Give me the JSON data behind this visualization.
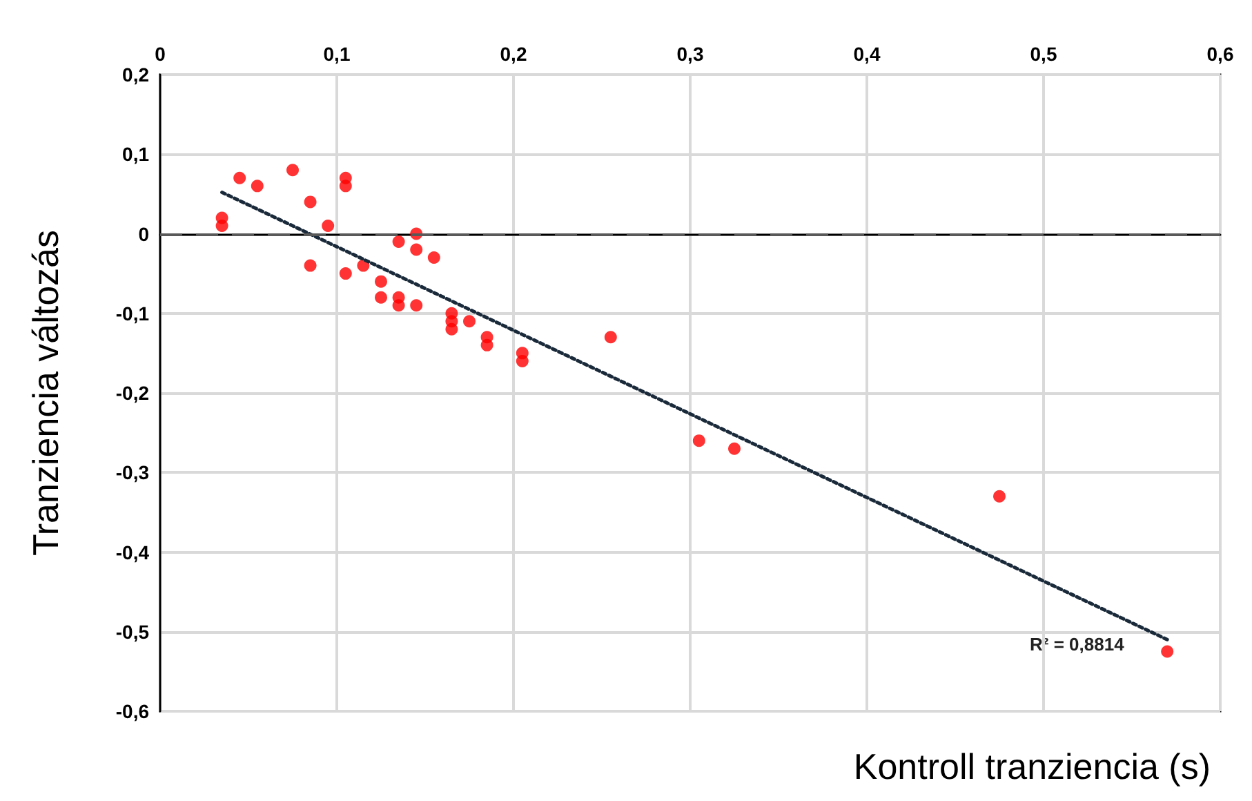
{
  "chart_data": {
    "type": "scatter",
    "xlabel": "Kontroll tranziencia (s)",
    "ylabel": "Tranziencia változás",
    "xlim": [
      0,
      0.6
    ],
    "xticks": [
      0,
      {
        "value": 0.1,
        "label": "0,1"
      },
      {
        "value": 0.2,
        "label": "0,2"
      },
      {
        "value": 0.3,
        "label": "0,3"
      },
      {
        "value": 0.4,
        "label": "0,4"
      },
      {
        "value": 0.5,
        "label": "0,5"
      },
      {
        "value": 0.6,
        "label": "0,6"
      }
    ],
    "ylim": [
      -0.6,
      0.2
    ],
    "yticks": [
      {
        "value": -0.6,
        "label": "-0,6"
      },
      {
        "value": -0.5,
        "label": "-0,5"
      },
      {
        "value": -0.4,
        "label": "-0,4"
      },
      {
        "value": -0.3,
        "label": "-0,3"
      },
      {
        "value": -0.2,
        "label": "-0,2"
      },
      {
        "value": -0.1,
        "label": "-0,1"
      },
      0,
      {
        "value": 0.1,
        "label": "0,1"
      },
      {
        "value": 0.2,
        "label": "0,2"
      }
    ],
    "grid": true,
    "marker": "circle",
    "series": [
      {
        "color": "#ff0000",
        "x": [
          0.035,
          0.035,
          0.045,
          0.055,
          0.075,
          0.085,
          0.085,
          0.095,
          0.105,
          0.105,
          0.105,
          0.115,
          0.125,
          0.125,
          0.135,
          0.135,
          0.135,
          0.145,
          0.145,
          0.145,
          0.155,
          0.165,
          0.165,
          0.165,
          0.175,
          0.185,
          0.185,
          0.205,
          0.205,
          0.255,
          0.305,
          0.325,
          0.475,
          0.57
        ],
        "values": [
          0.02,
          0.01,
          0.07,
          0.06,
          0.08,
          0.04,
          -0.04,
          0.01,
          0.07,
          0.06,
          -0.05,
          -0.04,
          -0.06,
          -0.08,
          -0.01,
          -0.08,
          -0.09,
          0,
          -0.02,
          -0.09,
          -0.03,
          -0.1,
          -0.11,
          -0.12,
          -0.11,
          -0.13,
          -0.14,
          -0.15,
          -0.16,
          -0.13,
          -0.26,
          -0.27,
          -0.33,
          -0.525
        ]
      },
      {
        "type": "line",
        "color": "#1a2a3a",
        "line_style": "dotted",
        "marker": "none",
        "x": [
          0.035,
          0.57
        ],
        "values": [
          0.052,
          -0.51
        ]
      }
    ],
    "ref_lines": [
      {
        "axis": "y",
        "value": 0,
        "color": "#595959",
        "line_style": "dashed"
      }
    ],
    "annotations": [
      "R² = 0,8814"
    ]
  }
}
